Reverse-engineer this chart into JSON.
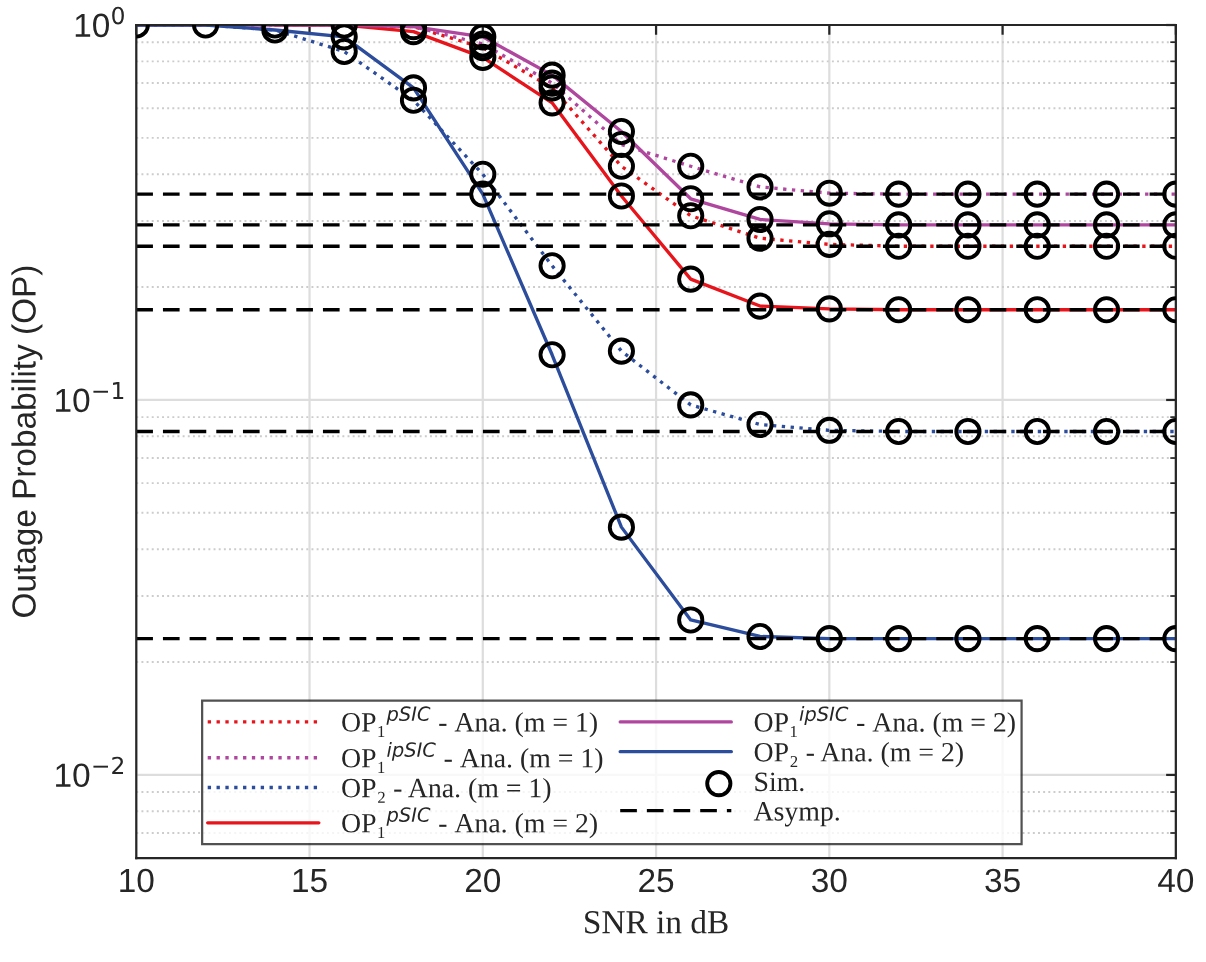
{
  "chart_data": {
    "type": "line",
    "xlabel": "SNR in dB",
    "ylabel": "Outage Probability (OP)",
    "log": "y",
    "grid": true,
    "legend": "bottom left",
    "marker": "none",
    "x": [
      10,
      12,
      14,
      16,
      18,
      20,
      22,
      24,
      26,
      28,
      30,
      32,
      34,
      36,
      38,
      40
    ],
    "xlim": [
      10,
      40
    ],
    "xticks": [
      10,
      15,
      20,
      25,
      30,
      35,
      40
    ],
    "ylim": [
      0.006,
      1
    ],
    "yticks": [
      {
        "value": 0.01,
        "label": "10$^{−2}$"
      },
      {
        "value": 0.1,
        "label": "10$^{−1}$"
      },
      {
        "value": 1,
        "label": "10$^{0}$"
      }
    ],
    "series": [
      {
        "name": "OP₁$^{pSIC}$ - Ana. (m = 1)",
        "color": "#e8141b",
        "line_style": "dotted",
        "values": [
          null,
          null,
          1,
          1,
          0.99,
          0.87,
          0.68,
          0.42,
          0.31,
          0.27,
          0.26,
          0.257,
          0.257,
          0.257,
          0.257,
          0.257
        ]
      },
      {
        "name": "OP₁$^{ipSIC}$ - Ana. (m = 1)",
        "color": "#b0479f",
        "line_style": "dotted",
        "values": [
          1,
          1,
          1,
          1,
          0.99,
          0.89,
          0.7,
          0.48,
          0.42,
          0.37,
          0.356,
          0.354,
          0.354,
          0.354,
          0.354,
          0.354
        ]
      },
      {
        "name": "OP₂ - Ana. (m = 1)",
        "color": "#2c4c9c",
        "line_style": "dotted",
        "values": [
          1,
          1,
          0.97,
          0.85,
          0.63,
          0.4,
          0.228,
          0.135,
          0.097,
          0.086,
          0.083,
          0.0824,
          0.0824,
          0.0824,
          0.0824,
          0.0824
        ]
      },
      {
        "name": "OP₁$^{pSIC}$ - Ana. (m = 2)",
        "color": "#e8141b",
        "line_style": "solid",
        "values": [
          null,
          null,
          1,
          1,
          0.96,
          0.82,
          0.62,
          0.35,
          0.21,
          0.178,
          0.175,
          0.174,
          0.174,
          0.174,
          0.174,
          0.174
        ]
      },
      {
        "name": "OP₁$^{ipSIC}$ - Ana. (m = 2)",
        "color": "#b0479f",
        "line_style": "solid",
        "values": [
          1,
          1,
          1,
          1,
          0.99,
          0.93,
          0.735,
          0.52,
          0.344,
          0.303,
          0.295,
          0.293,
          0.293,
          0.293,
          0.293,
          0.293
        ]
      },
      {
        "name": "OP₂ - Ana. (m = 2)",
        "color": "#2c4c9c",
        "line_style": "solid",
        "values": [
          1,
          1,
          0.97,
          0.93,
          0.68,
          0.354,
          0.132,
          0.0458,
          0.0259,
          0.0234,
          0.0231,
          0.0231,
          0.0231,
          0.0231,
          0.0231,
          0.0231
        ]
      },
      {
        "name": "Sim.",
        "type": "scatter",
        "marker": "circle",
        "color": "#000000",
        "x": [
          10,
          12,
          14,
          16,
          18,
          20,
          22,
          24,
          26,
          28,
          30,
          32,
          34,
          36,
          38,
          40,
          20,
          22,
          24,
          26,
          28,
          30,
          32,
          34,
          36,
          38,
          40,
          14,
          16,
          18,
          20,
          22,
          24,
          26,
          28,
          30,
          32,
          34,
          36,
          38,
          40,
          18,
          20,
          22,
          24,
          26,
          28,
          30,
          32,
          34,
          36,
          38,
          40,
          20,
          22,
          24,
          26,
          28,
          30,
          32,
          34,
          36,
          38,
          40,
          16,
          18,
          20,
          22,
          24,
          26,
          28,
          30,
          32,
          34,
          36,
          38,
          40
        ],
        "values": [
          1,
          1,
          1,
          1,
          0.99,
          0.87,
          0.68,
          0.42,
          0.31,
          0.27,
          0.26,
          0.257,
          0.257,
          0.257,
          0.257,
          0.257,
          0.89,
          0.7,
          0.48,
          0.42,
          0.37,
          0.356,
          0.354,
          0.354,
          0.354,
          0.354,
          0.354,
          0.97,
          0.85,
          0.63,
          0.4,
          0.228,
          0.135,
          0.097,
          0.086,
          0.083,
          0.0824,
          0.0824,
          0.0824,
          0.0824,
          0.0824,
          0.96,
          0.82,
          0.62,
          0.35,
          0.21,
          0.178,
          0.175,
          0.174,
          0.174,
          0.174,
          0.174,
          0.174,
          0.93,
          0.735,
          0.52,
          0.344,
          0.303,
          0.295,
          0.293,
          0.293,
          0.293,
          0.293,
          0.293,
          0.93,
          0.68,
          0.354,
          0.132,
          0.0458,
          0.0259,
          0.0234,
          0.0231,
          0.0231,
          0.0231,
          0.0231,
          0.0231,
          0.0231
        ]
      },
      {
        "name": "Asymp.",
        "color": "#000000",
        "line_style": "dashed",
        "x": [
          10,
          40
        ],
        "values": [
          0.354,
          0.354
        ]
      },
      {
        "color": "#000000",
        "line_style": "dashed",
        "x": [
          10,
          40
        ],
        "values": [
          0.293,
          0.293
        ]
      },
      {
        "color": "#000000",
        "line_style": "dashed",
        "x": [
          10,
          40
        ],
        "values": [
          0.257,
          0.257
        ]
      },
      {
        "color": "#000000",
        "line_style": "dashed",
        "x": [
          10,
          40
        ],
        "values": [
          0.174,
          0.174
        ]
      },
      {
        "color": "#000000",
        "line_style": "dashed",
        "x": [
          10,
          40
        ],
        "values": [
          0.0824,
          0.0824
        ]
      },
      {
        "color": "#000000",
        "line_style": "dashed",
        "x": [
          10,
          40
        ],
        "values": [
          0.0231,
          0.0231
        ]
      }
    ]
  }
}
